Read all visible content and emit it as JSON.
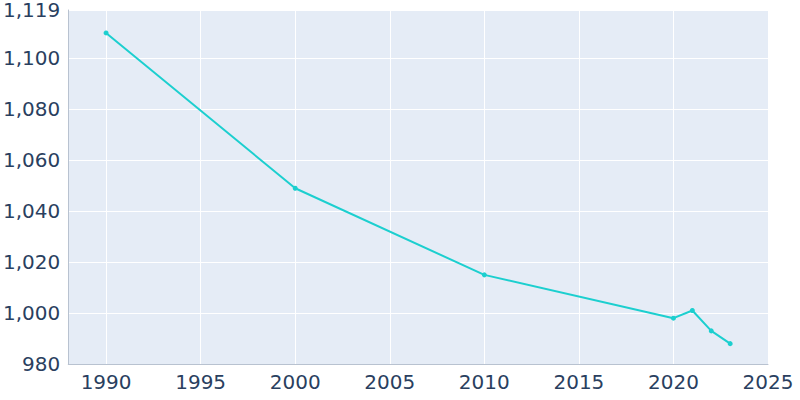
{
  "chart_data": {
    "type": "line",
    "x": [
      1990,
      2000,
      2010,
      2020,
      2021,
      2022,
      2023
    ],
    "values": [
      1110,
      1049,
      1015,
      998,
      1001,
      993,
      988
    ],
    "color": "#1ccfcf",
    "marker": "circle",
    "xlim": [
      1988,
      2025
    ],
    "xticks": [
      1990,
      1995,
      2000,
      2005,
      2010,
      2015,
      2020,
      2025
    ],
    "ylim": [
      980,
      1119
    ],
    "yticks": [
      980,
      1000,
      1020,
      1040,
      1060,
      1080,
      1100
    ],
    "grid": true
  }
}
